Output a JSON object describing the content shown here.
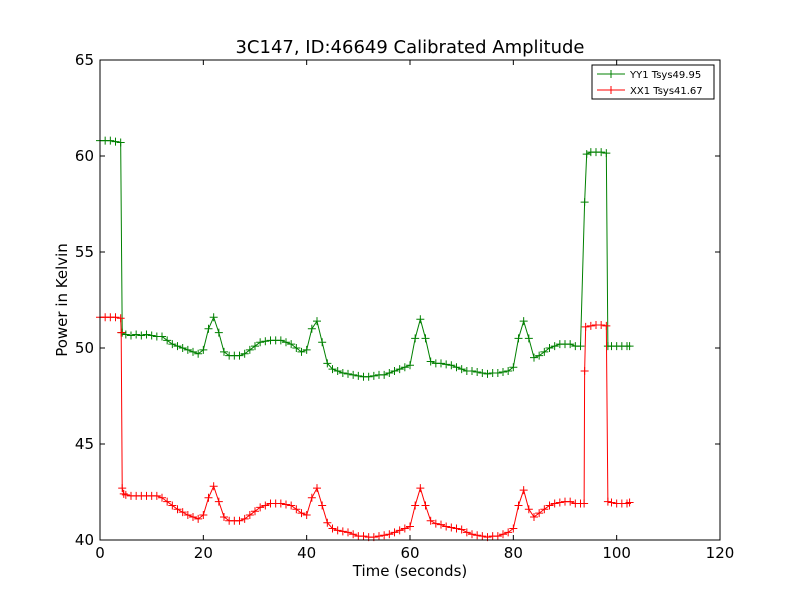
{
  "chart_data": {
    "type": "line",
    "title": "3C147, ID:46649 Calibrated Amplitude",
    "xlabel": "Time (seconds)",
    "ylabel": "Power in Kelvin",
    "xlim": [
      0,
      120
    ],
    "ylim": [
      40,
      65
    ],
    "xticks": [
      0,
      20,
      40,
      60,
      80,
      100,
      120
    ],
    "yticks": [
      40,
      45,
      50,
      55,
      60,
      65
    ],
    "xtick_labels": [
      "0",
      "20",
      "40",
      "60",
      "80",
      "100",
      "120"
    ],
    "ytick_labels": [
      "40",
      "45",
      "50",
      "55",
      "60",
      "65"
    ],
    "grid": false,
    "legend_position": "top-right",
    "marker": "+",
    "series": [
      {
        "name": "YY1 Tsys49.95",
        "color": "#008000",
        "points": [
          [
            0,
            60.8
          ],
          [
            1,
            60.8
          ],
          [
            2,
            60.8
          ],
          [
            3,
            60.75
          ],
          [
            4,
            60.7
          ],
          [
            4.3,
            50.8
          ],
          [
            5,
            50.7
          ],
          [
            6,
            50.65
          ],
          [
            7,
            50.7
          ],
          [
            8,
            50.65
          ],
          [
            9,
            50.7
          ],
          [
            10,
            50.65
          ],
          [
            11,
            50.6
          ],
          [
            12,
            50.6
          ],
          [
            13,
            50.4
          ],
          [
            14,
            50.2
          ],
          [
            15,
            50.1
          ],
          [
            16,
            50.0
          ],
          [
            17,
            49.9
          ],
          [
            18,
            49.8
          ],
          [
            19,
            49.7
          ],
          [
            20,
            49.9
          ],
          [
            21,
            51.0
          ],
          [
            22,
            51.6
          ],
          [
            23,
            50.8
          ],
          [
            24,
            49.8
          ],
          [
            25,
            49.6
          ],
          [
            26,
            49.6
          ],
          [
            27,
            49.6
          ],
          [
            28,
            49.7
          ],
          [
            29,
            49.9
          ],
          [
            30,
            50.1
          ],
          [
            31,
            50.3
          ],
          [
            32,
            50.35
          ],
          [
            33,
            50.4
          ],
          [
            34,
            50.4
          ],
          [
            35,
            50.4
          ],
          [
            36,
            50.3
          ],
          [
            37,
            50.2
          ],
          [
            38,
            50.0
          ],
          [
            39,
            49.8
          ],
          [
            40,
            49.9
          ],
          [
            41,
            51.0
          ],
          [
            42,
            51.4
          ],
          [
            43,
            50.3
          ],
          [
            44,
            49.2
          ],
          [
            45,
            48.9
          ],
          [
            46,
            48.8
          ],
          [
            47,
            48.7
          ],
          [
            48,
            48.65
          ],
          [
            49,
            48.6
          ],
          [
            50,
            48.55
          ],
          [
            51,
            48.5
          ],
          [
            52,
            48.5
          ],
          [
            53,
            48.55
          ],
          [
            54,
            48.6
          ],
          [
            55,
            48.6
          ],
          [
            56,
            48.7
          ],
          [
            57,
            48.8
          ],
          [
            58,
            48.9
          ],
          [
            59,
            49.0
          ],
          [
            60,
            49.1
          ],
          [
            61,
            50.5
          ],
          [
            62,
            51.5
          ],
          [
            63,
            50.5
          ],
          [
            64,
            49.3
          ],
          [
            65,
            49.2
          ],
          [
            66,
            49.2
          ],
          [
            67,
            49.15
          ],
          [
            68,
            49.1
          ],
          [
            69,
            49.0
          ],
          [
            70,
            48.9
          ],
          [
            71,
            48.8
          ],
          [
            72,
            48.8
          ],
          [
            73,
            48.75
          ],
          [
            74,
            48.7
          ],
          [
            75,
            48.65
          ],
          [
            76,
            48.7
          ],
          [
            77,
            48.7
          ],
          [
            78,
            48.75
          ],
          [
            79,
            48.8
          ],
          [
            80,
            49.0
          ],
          [
            81,
            50.5
          ],
          [
            82,
            51.4
          ],
          [
            83,
            50.5
          ],
          [
            84,
            49.5
          ],
          [
            85,
            49.6
          ],
          [
            86,
            49.8
          ],
          [
            87,
            50.0
          ],
          [
            88,
            50.1
          ],
          [
            89,
            50.2
          ],
          [
            90,
            50.2
          ],
          [
            91,
            50.2
          ],
          [
            92,
            50.1
          ],
          [
            93,
            50.1
          ],
          [
            93.8,
            57.6
          ],
          [
            94.2,
            60.1
          ],
          [
            95,
            60.2
          ],
          [
            96,
            60.2
          ],
          [
            97,
            60.2
          ],
          [
            98,
            60.15
          ],
          [
            98.3,
            50.1
          ],
          [
            99,
            50.1
          ],
          [
            100,
            50.1
          ],
          [
            101,
            50.1
          ],
          [
            102,
            50.1
          ],
          [
            102.5,
            50.1
          ]
        ]
      },
      {
        "name": "XX1 Tsys41.67",
        "color": "#ff0000",
        "points": [
          [
            0,
            51.6
          ],
          [
            1,
            51.6
          ],
          [
            2,
            51.6
          ],
          [
            3,
            51.6
          ],
          [
            4,
            51.55
          ],
          [
            4.1,
            50.8
          ],
          [
            4.3,
            42.7
          ],
          [
            4.6,
            42.4
          ],
          [
            5,
            42.35
          ],
          [
            6,
            42.3
          ],
          [
            7,
            42.3
          ],
          [
            8,
            42.3
          ],
          [
            9,
            42.3
          ],
          [
            10,
            42.3
          ],
          [
            11,
            42.3
          ],
          [
            12,
            42.2
          ],
          [
            13,
            42.0
          ],
          [
            14,
            41.8
          ],
          [
            15,
            41.6
          ],
          [
            16,
            41.45
          ],
          [
            17,
            41.3
          ],
          [
            18,
            41.2
          ],
          [
            19,
            41.1
          ],
          [
            20,
            41.3
          ],
          [
            21,
            42.2
          ],
          [
            22,
            42.8
          ],
          [
            23,
            42.0
          ],
          [
            24,
            41.2
          ],
          [
            25,
            41.0
          ],
          [
            26,
            41.0
          ],
          [
            27,
            41.0
          ],
          [
            28,
            41.1
          ],
          [
            29,
            41.3
          ],
          [
            30,
            41.5
          ],
          [
            31,
            41.7
          ],
          [
            32,
            41.8
          ],
          [
            33,
            41.9
          ],
          [
            34,
            41.9
          ],
          [
            35,
            41.9
          ],
          [
            36,
            41.85
          ],
          [
            37,
            41.8
          ],
          [
            38,
            41.6
          ],
          [
            39,
            41.4
          ],
          [
            40,
            41.3
          ],
          [
            41,
            42.2
          ],
          [
            42,
            42.7
          ],
          [
            43,
            41.8
          ],
          [
            44,
            40.9
          ],
          [
            45,
            40.6
          ],
          [
            46,
            40.5
          ],
          [
            47,
            40.45
          ],
          [
            48,
            40.4
          ],
          [
            49,
            40.3
          ],
          [
            50,
            40.2
          ],
          [
            51,
            40.2
          ],
          [
            52,
            40.15
          ],
          [
            53,
            40.15
          ],
          [
            54,
            40.2
          ],
          [
            55,
            40.25
          ],
          [
            56,
            40.3
          ],
          [
            57,
            40.4
          ],
          [
            58,
            40.5
          ],
          [
            59,
            40.6
          ],
          [
            60,
            40.7
          ],
          [
            61,
            41.8
          ],
          [
            62,
            42.7
          ],
          [
            63,
            41.8
          ],
          [
            64,
            41.0
          ],
          [
            65,
            40.85
          ],
          [
            66,
            40.8
          ],
          [
            67,
            40.7
          ],
          [
            68,
            40.65
          ],
          [
            69,
            40.6
          ],
          [
            70,
            40.55
          ],
          [
            71,
            40.4
          ],
          [
            72,
            40.3
          ],
          [
            73,
            40.25
          ],
          [
            74,
            40.2
          ],
          [
            75,
            40.15
          ],
          [
            76,
            40.2
          ],
          [
            77,
            40.2
          ],
          [
            78,
            40.3
          ],
          [
            79,
            40.4
          ],
          [
            80,
            40.6
          ],
          [
            81,
            41.8
          ],
          [
            82,
            42.6
          ],
          [
            83,
            41.6
          ],
          [
            84,
            41.2
          ],
          [
            85,
            41.4
          ],
          [
            86,
            41.6
          ],
          [
            87,
            41.8
          ],
          [
            88,
            41.9
          ],
          [
            89,
            41.95
          ],
          [
            90,
            42.0
          ],
          [
            91,
            42.0
          ],
          [
            92,
            41.9
          ],
          [
            93,
            41.9
          ],
          [
            93.7,
            41.9
          ],
          [
            93.8,
            48.8
          ],
          [
            94,
            51.1
          ],
          [
            95,
            51.15
          ],
          [
            96,
            51.2
          ],
          [
            97,
            51.2
          ],
          [
            98,
            51.15
          ],
          [
            98.3,
            42.0
          ],
          [
            99,
            41.95
          ],
          [
            100,
            41.9
          ],
          [
            101,
            41.9
          ],
          [
            102,
            41.9
          ],
          [
            102.5,
            41.95
          ]
        ]
      }
    ]
  }
}
